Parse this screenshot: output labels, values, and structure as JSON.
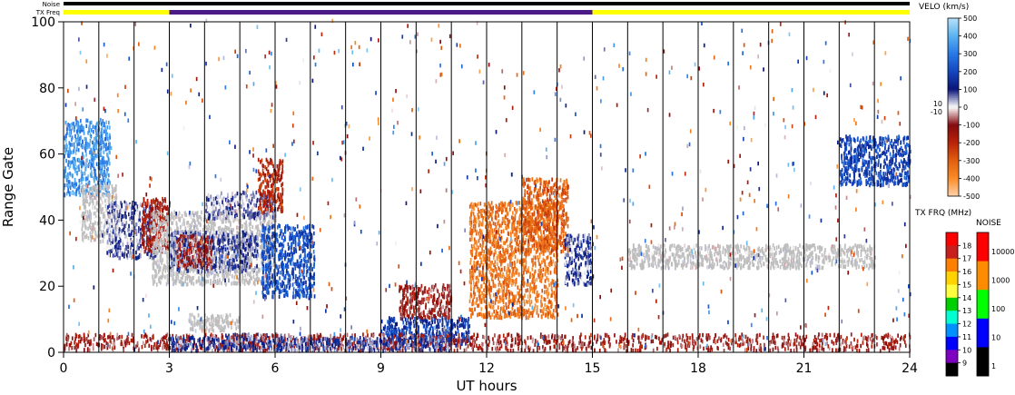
{
  "chart_data": {
    "type": "heatmap",
    "xlabel": "UT hours",
    "ylabel": "Range Gate",
    "xlim": [
      0,
      24
    ],
    "ylim": [
      0,
      100
    ],
    "x_ticks": [
      "0",
      "3",
      "6",
      "9",
      "12",
      "15",
      "18",
      "21",
      "24"
    ],
    "y_ticks": [
      "0",
      "20",
      "40",
      "60",
      "80",
      "100"
    ],
    "scan_boundaries_hours": [
      1,
      2,
      3,
      4,
      5,
      6,
      7,
      8,
      9,
      10,
      11,
      12,
      13,
      14,
      15,
      16,
      17,
      18,
      19,
      20,
      21,
      22,
      23
    ],
    "status_bars": {
      "noise_label": "Noise",
      "txfreq_label": "TX Freq",
      "segments": [
        {
          "start": 0,
          "end": 3,
          "freq_mhz": 15
        },
        {
          "start": 3,
          "end": 15,
          "freq_mhz": 10
        },
        {
          "start": 15,
          "end": 24,
          "freq_mhz": 15
        }
      ]
    },
    "echo_regions": [
      {
        "t0": 0.0,
        "t1": 1.3,
        "g0": 47,
        "g1": 70,
        "velocity_kms": 350
      },
      {
        "t0": 0.5,
        "t1": 1.5,
        "g0": 33,
        "g1": 50,
        "velocity_kms": 0,
        "ground_scatter": true
      },
      {
        "t0": 1.2,
        "t1": 2.6,
        "g0": 28,
        "g1": 45,
        "velocity_kms": 60
      },
      {
        "t0": 2.2,
        "t1": 3.0,
        "g0": 30,
        "g1": 46,
        "velocity_kms": -150
      },
      {
        "t0": 2.5,
        "t1": 6.0,
        "g0": 20,
        "g1": 42,
        "velocity_kms": 0,
        "ground_scatter": true
      },
      {
        "t0": 3.0,
        "t1": 5.5,
        "g0": 24,
        "g1": 36,
        "velocity_kms": 80
      },
      {
        "t0": 3.2,
        "t1": 4.2,
        "g0": 25,
        "g1": 35,
        "velocity_kms": -100
      },
      {
        "t0": 4.0,
        "t1": 6.0,
        "g0": 40,
        "g1": 48,
        "velocity_kms": 50
      },
      {
        "t0": 5.5,
        "t1": 6.2,
        "g0": 42,
        "g1": 58,
        "velocity_kms": -200
      },
      {
        "t0": 5.6,
        "t1": 7.1,
        "g0": 16,
        "g1": 38,
        "velocity_kms": 220
      },
      {
        "t0": 3.5,
        "t1": 5.0,
        "g0": 6,
        "g1": 11,
        "velocity_kms": 0,
        "ground_scatter": true
      },
      {
        "t0": 4.5,
        "t1": 6.5,
        "g0": 0,
        "g1": 5,
        "velocity_kms": 60
      },
      {
        "t0": 9.0,
        "t1": 11.5,
        "g0": 2,
        "g1": 10,
        "velocity_kms": 180
      },
      {
        "t0": 9.5,
        "t1": 11.0,
        "g0": 10,
        "g1": 20,
        "velocity_kms": -120
      },
      {
        "t0": 11.5,
        "t1": 14.0,
        "g0": 10,
        "g1": 45,
        "velocity_kms": -350
      },
      {
        "t0": 13.0,
        "t1": 14.3,
        "g0": 30,
        "g1": 52,
        "velocity_kms": -300
      },
      {
        "t0": 14.2,
        "t1": 15.0,
        "g0": 20,
        "g1": 35,
        "velocity_kms": 80
      },
      {
        "t0": 16.0,
        "t1": 23.0,
        "g0": 25,
        "g1": 32,
        "velocity_kms": 0,
        "ground_scatter": true
      },
      {
        "t0": 22.0,
        "t1": 24.0,
        "g0": 50,
        "g1": 65,
        "velocity_kms": 200
      },
      {
        "t0": 0.0,
        "t1": 24.0,
        "g0": 0,
        "g1": 5,
        "velocity_kms": -120
      },
      {
        "t0": 3.0,
        "t1": 11.0,
        "g0": 0,
        "g1": 4,
        "velocity_kms": 90
      }
    ],
    "velocity_colorbar": {
      "title": "VELO (km/s)",
      "ticks": [
        "500",
        "400",
        "300",
        "200",
        "100",
        "0",
        "-100",
        "-200",
        "-300",
        "-400",
        "-500"
      ],
      "side_labels": [
        "10",
        "-10"
      ],
      "range": [
        -500,
        500
      ]
    },
    "txfreq_colorbar": {
      "title": "TX FRQ (MHz)",
      "ticks": [
        "18",
        "17",
        "16",
        "15",
        "14",
        "13",
        "12",
        "11",
        "10",
        "9"
      ],
      "colors": [
        "#ff0000",
        "#c81e1e",
        "#ff7f00",
        "#ffd200",
        "#ffff40",
        "#00d000",
        "#00ffd0",
        "#0090ff",
        "#0000ff",
        "#7f00c0",
        "#000000"
      ]
    },
    "noise_colorbar": {
      "title": "NOISE",
      "ticks": [
        "10000",
        "1000",
        "100",
        "10",
        "1"
      ],
      "colors": [
        "#ff0000",
        "#ff8c00",
        "#00ff00",
        "#0000ff",
        "#000000"
      ]
    }
  }
}
